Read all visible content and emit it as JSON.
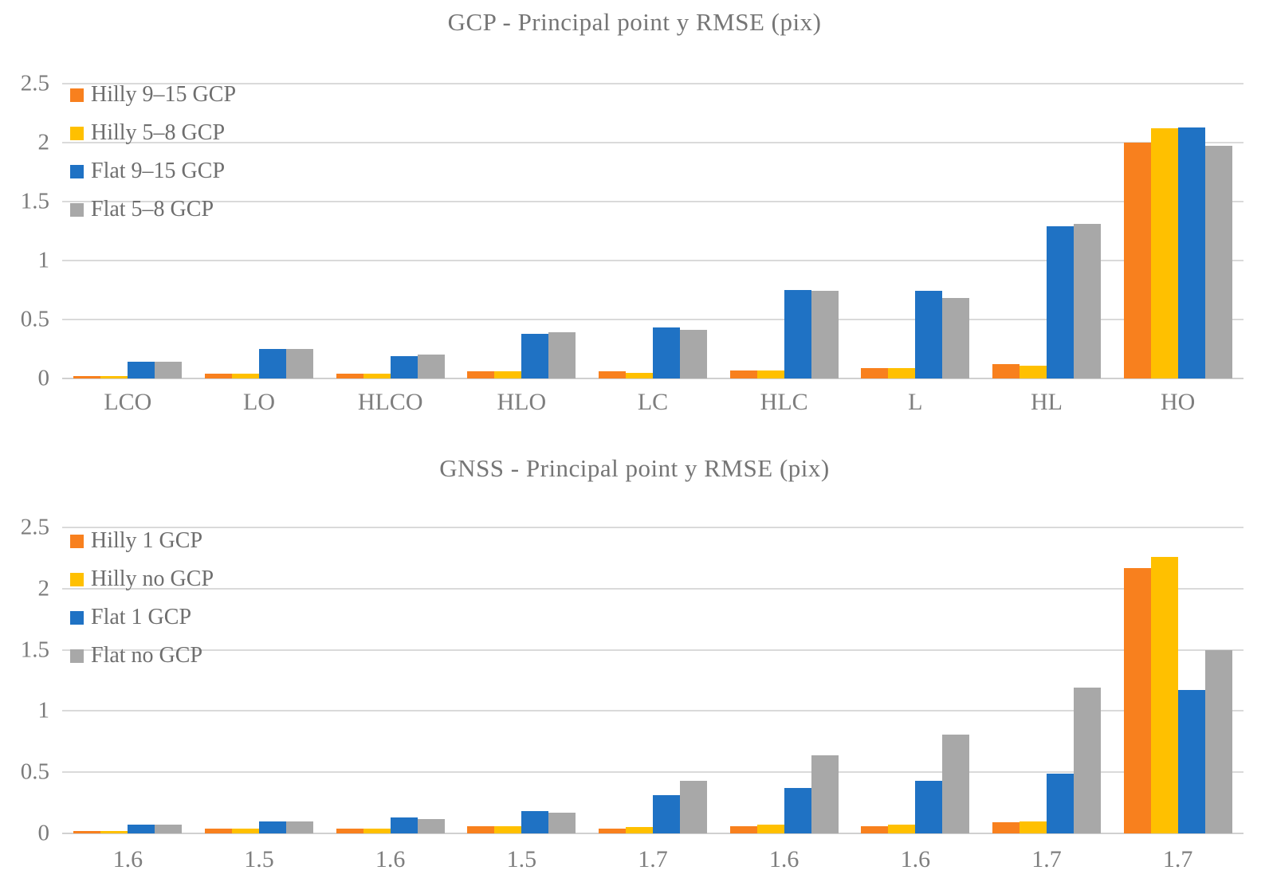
{
  "chart_data": [
    {
      "type": "bar",
      "title": "GCP - Principal point y RMSE (pix)",
      "categories": [
        "LCO",
        "LO",
        "HLCO",
        "HLO",
        "LC",
        "HLC",
        "L",
        "HL",
        "HO"
      ],
      "series": [
        {
          "name": "Hilly 9–15 GCP",
          "color": "#F8801E",
          "values": [
            0.02,
            0.04,
            0.04,
            0.06,
            0.06,
            0.07,
            0.09,
            0.12,
            2.0
          ]
        },
        {
          "name": "Hilly 5–8 GCP",
          "color": "#FFC000",
          "values": [
            0.02,
            0.04,
            0.04,
            0.06,
            0.05,
            0.07,
            0.09,
            0.11,
            2.12
          ]
        },
        {
          "name": "Flat 9–15 GCP",
          "color": "#1F72C4",
          "values": [
            0.14,
            0.25,
            0.19,
            0.38,
            0.43,
            0.75,
            0.74,
            1.29,
            2.13
          ]
        },
        {
          "name": "Flat 5–8 GCP",
          "color": "#A8A8A8",
          "values": [
            0.14,
            0.25,
            0.2,
            0.39,
            0.41,
            0.74,
            0.68,
            1.31,
            1.97
          ]
        }
      ],
      "ylim": [
        0,
        2.5
      ],
      "yticks": [
        "0",
        "0.5",
        "1",
        "1.5",
        "2",
        "2.5"
      ],
      "grid": true,
      "legend_position": "top-left"
    },
    {
      "type": "bar",
      "title": "GNSS - Principal point y RMSE (pix)",
      "categories": [
        "1.6",
        "1.5",
        "1.6",
        "1.5",
        "1.7",
        "1.6",
        "1.6",
        "1.7",
        "1.7"
      ],
      "series": [
        {
          "name": "Hilly 1 GCP",
          "color": "#F8801E",
          "values": [
            0.02,
            0.04,
            0.04,
            0.06,
            0.04,
            0.06,
            0.06,
            0.09,
            2.17
          ]
        },
        {
          "name": "Hilly no GCP",
          "color": "#FFC000",
          "values": [
            0.02,
            0.04,
            0.04,
            0.06,
            0.05,
            0.07,
            0.07,
            0.1,
            2.26
          ]
        },
        {
          "name": "Flat 1 GCP",
          "color": "#1F72C4",
          "values": [
            0.07,
            0.1,
            0.13,
            0.18,
            0.31,
            0.37,
            0.43,
            0.49,
            1.17
          ]
        },
        {
          "name": "Flat no GCP",
          "color": "#A8A8A8",
          "values": [
            0.07,
            0.1,
            0.12,
            0.17,
            0.43,
            0.64,
            0.81,
            1.19,
            1.5
          ]
        }
      ],
      "ylim": [
        0,
        2.5
      ],
      "yticks": [
        "0",
        "0.5",
        "1",
        "1.5",
        "2",
        "2.5"
      ],
      "grid": true,
      "legend_position": "top-left"
    }
  ]
}
